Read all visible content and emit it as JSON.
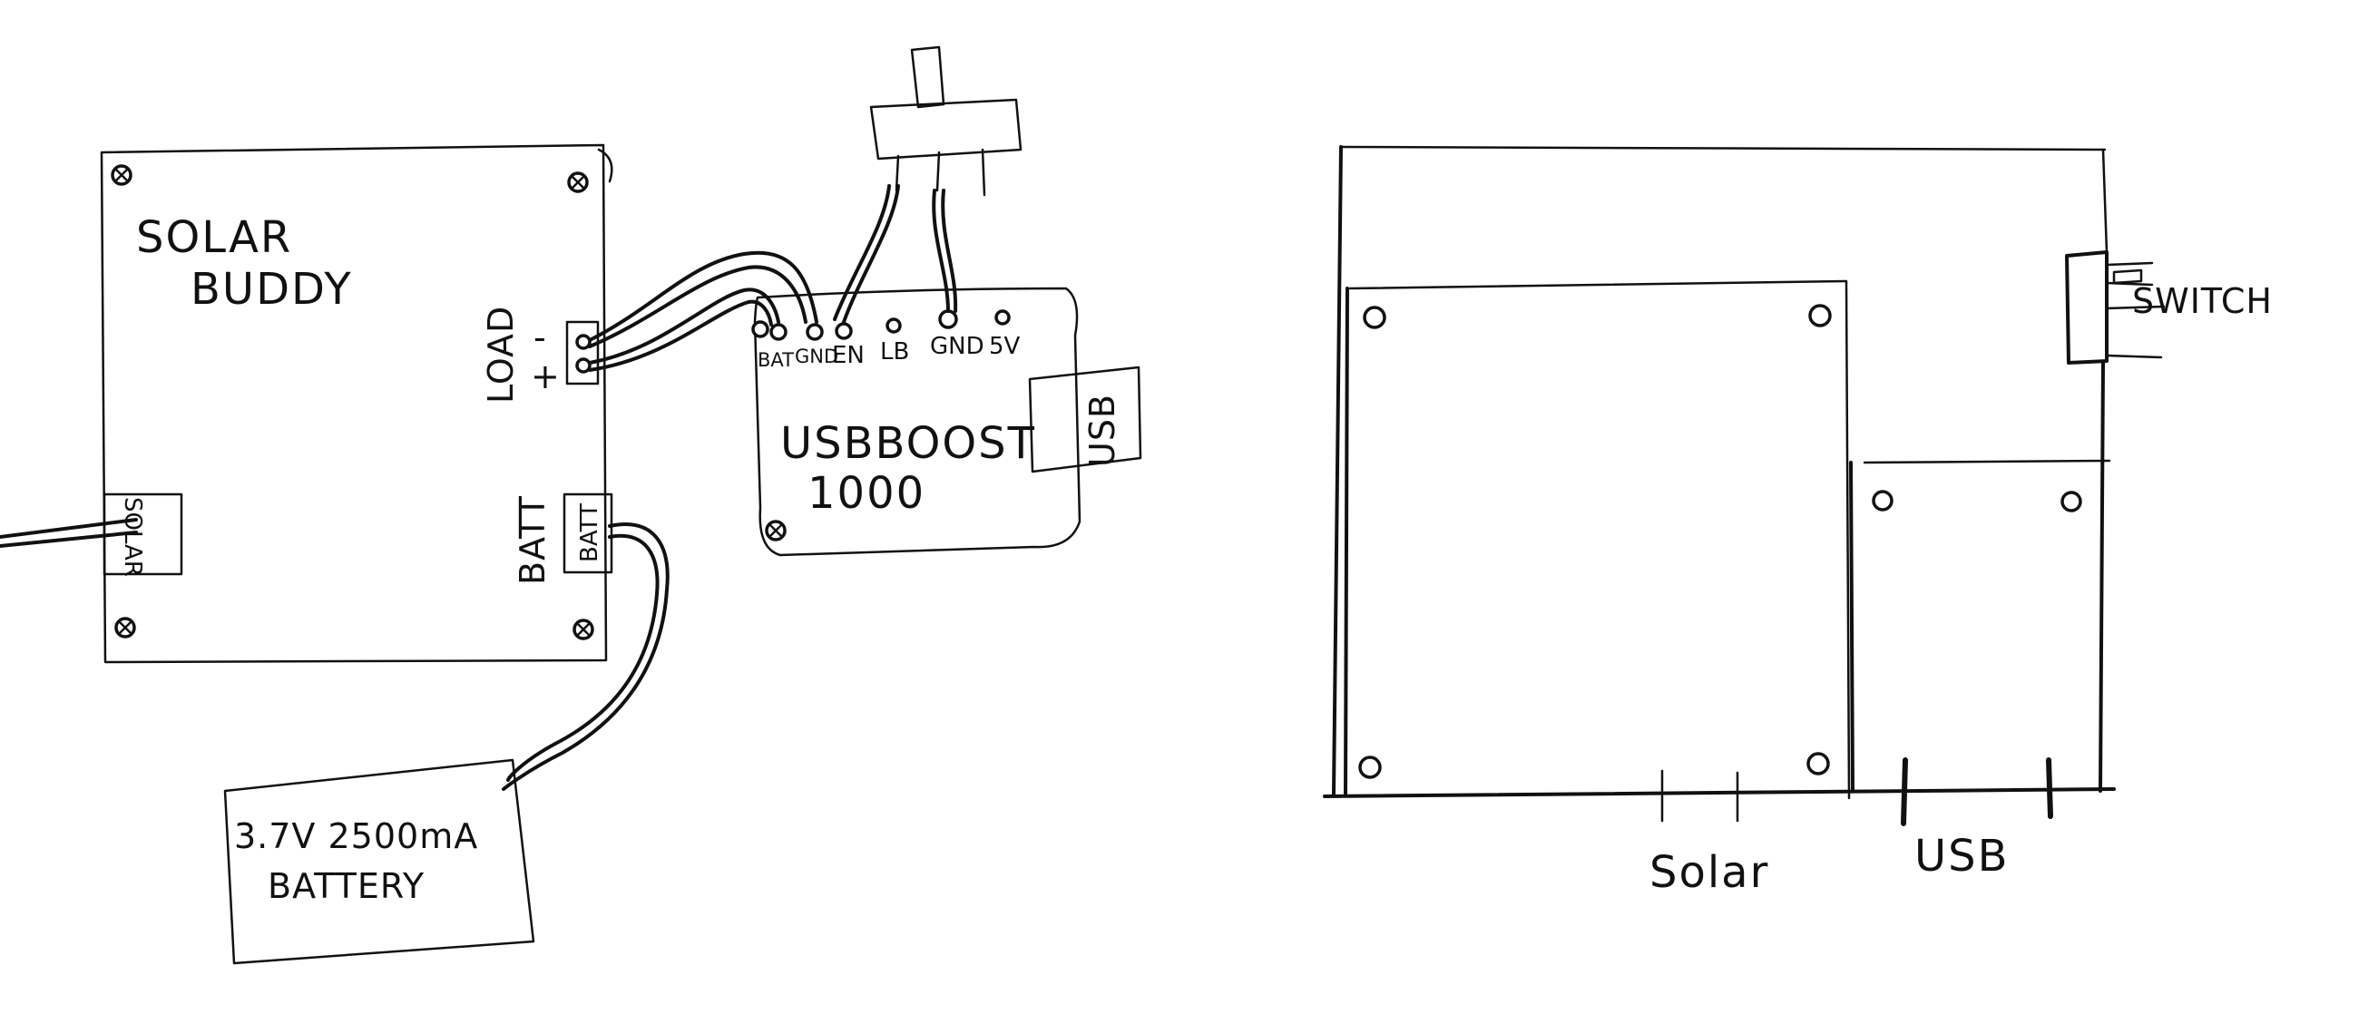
{
  "wiring_diagram": {
    "solar_board": {
      "title_line1": "SOLAR",
      "title_line2": "BUDDY",
      "load_label": "LOAD",
      "minus_sign": "-",
      "plus_sign": "+",
      "batt_side_label": "BATT",
      "batt_connector_label": "BATT",
      "solar_connector_label": "SOLAR"
    },
    "boost_board": {
      "title_line1": "USBBOOST",
      "title_line2": "1000",
      "pins": [
        "BAT",
        "GND",
        "EN",
        "LB",
        "GND",
        "5V"
      ],
      "usb_port_label": "USB"
    },
    "battery": {
      "line1": "3.7V  2500mA",
      "line2": "BATTERY"
    }
  },
  "enclosure_view": {
    "switch_label": "SWITCH",
    "solar_port_label": "Solar",
    "usb_port_label": "USB"
  }
}
